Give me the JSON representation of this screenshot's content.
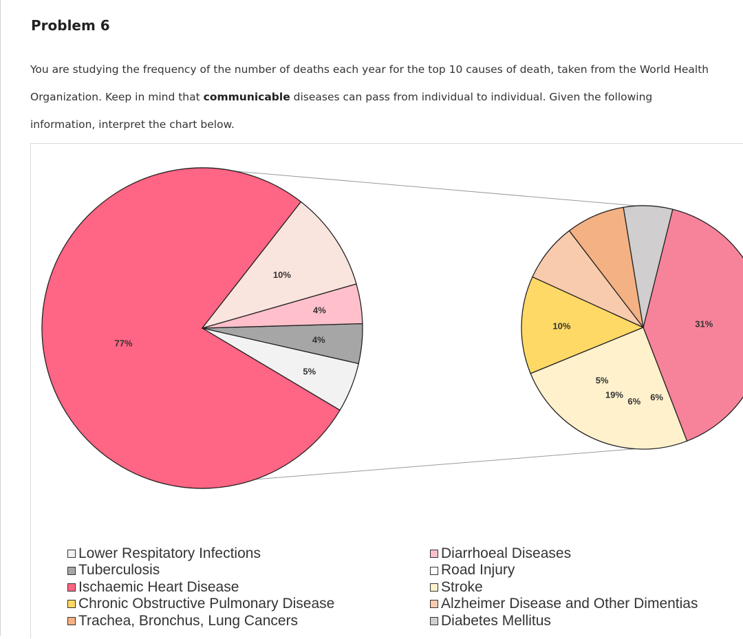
{
  "page": {
    "title": "Problem 6",
    "paragraph_before": "You are studying the frequency of the number of deaths each year for the top 10 causes of death, taken from the World Health Organization. Keep in mind that ",
    "paragraph_bold": "communicable",
    "paragraph_after": " diseases can pass from individual to individual. Given the following information, interpret the chart below."
  },
  "chart_data": {
    "type": "pie",
    "subtype": "pie-of-pie",
    "title": "",
    "main_pie": {
      "slices": [
        {
          "label": "Ischaemic Heart Disease",
          "value": 77,
          "display": "77%",
          "color": "#ff6584"
        },
        {
          "label": "Lower Respitatory Infections",
          "value": 5,
          "display": "5%",
          "color": "#f2f2f2"
        },
        {
          "label": "Tuberculosis",
          "value": 4,
          "display": "4%",
          "color": "#a6a6a6"
        },
        {
          "label": "Diarrhoeal Diseases",
          "value": 4,
          "display": "4%",
          "color": "#ffc0cb"
        },
        {
          "label": "Chronic Obstructive Pulmonary Disease",
          "value": 10,
          "display": "10%",
          "color": "#fae4de"
        }
      ]
    },
    "secondary_pie": {
      "source_slice": "Ischaemic Heart Disease",
      "slices": [
        {
          "label": "Ischaemic Heart Disease",
          "value": 31,
          "display": "31%",
          "color": "#f7839a"
        },
        {
          "label": "Stroke",
          "value": 19,
          "display": "19%",
          "color": "#fff1cc"
        },
        {
          "label": "Chronic Obstructive Pulmonary Disease",
          "value": 10,
          "display": "10%",
          "color": "#ffd966"
        },
        {
          "label": "Alzheimer Disease and Other Dimentias",
          "value": 6,
          "display": "6%",
          "color": "#f8cbad"
        },
        {
          "label": "Trachea, Bronchus, Lung Cancers",
          "value": 6,
          "display": "6%",
          "color": "#f4b183"
        },
        {
          "label": "Diabetes Mellitus",
          "value": 5,
          "display": "5%",
          "color": "#d0cece"
        }
      ]
    },
    "legend": {
      "placement": "bottom",
      "left_column": [
        {
          "label": "Lower Respitatory Infections",
          "color": "#f2f2f2"
        },
        {
          "label": "Tuberculosis",
          "color": "#a6a6a6"
        },
        {
          "label": "Ischaemic Heart Disease",
          "color": "#ff6584"
        },
        {
          "label": "Chronic Obstructive Pulmonary Disease",
          "color": "#ffd966"
        },
        {
          "label": "Trachea, Bronchus, Lung Cancers",
          "color": "#f4b183"
        }
      ],
      "right_column": [
        {
          "label": "Diarrhoeal Diseases",
          "color": "#ffc0cb"
        },
        {
          "label": "Road Injury",
          "color": "#ffffff"
        },
        {
          "label": "Stroke",
          "color": "#fff1cc"
        },
        {
          "label": "Alzheimer Disease and Other Dimentias",
          "color": "#f8cbad"
        },
        {
          "label": "Diabetes Mellitus",
          "color": "#d0cece"
        }
      ]
    }
  }
}
